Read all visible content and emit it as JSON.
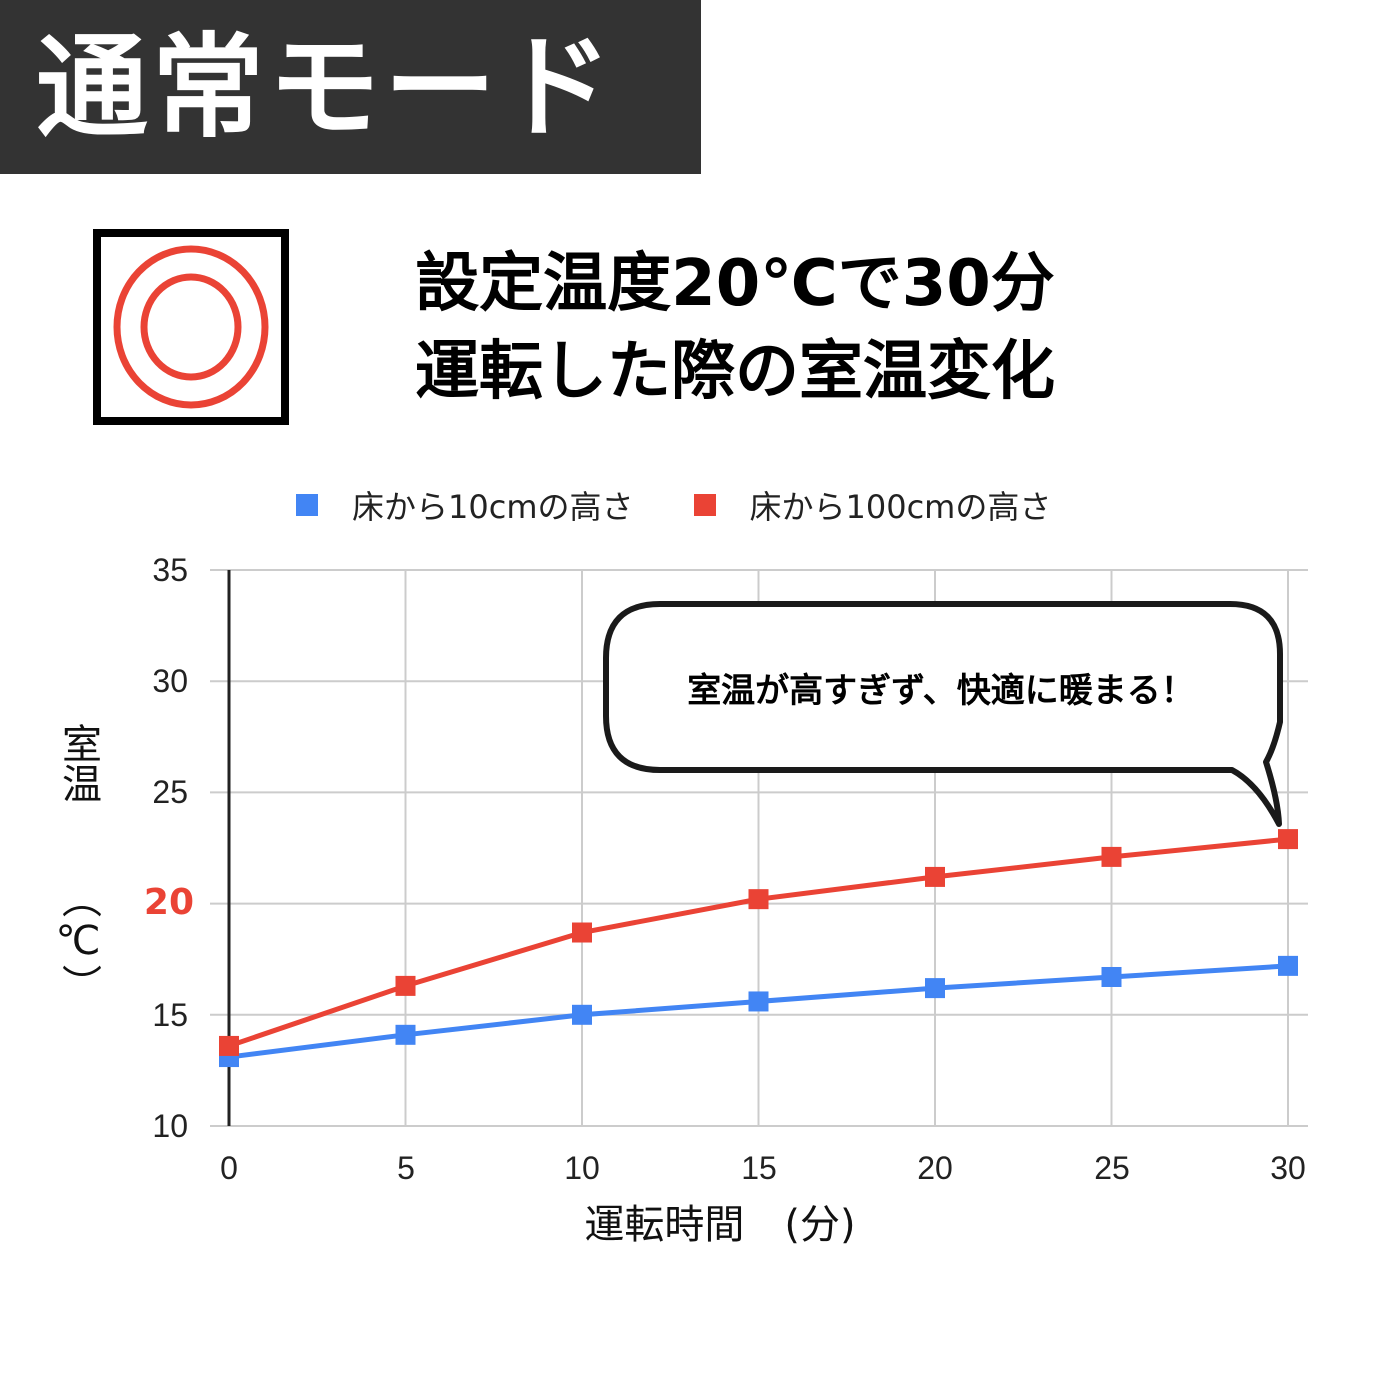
{
  "header": {
    "title": "通常モード",
    "background": "#333333",
    "text_color": "#ffffff"
  },
  "rating_icon": {
    "name": "double-circle-icon",
    "meaning": "◎",
    "color": "#ea4335"
  },
  "subtitle": {
    "line1": "設定温度20℃で30分",
    "line2": "運転した際の室温変化"
  },
  "callout": {
    "text": "室温が高すぎず、快適に暖まる！"
  },
  "legend": [
    {
      "label": "床から10cmの高さ",
      "color": "#4285f4"
    },
    {
      "label": "床から100cmの高さ",
      "color": "#ea4335"
    }
  ],
  "axes": {
    "y_label_main": "室温",
    "y_label_unit": "（℃）",
    "x_label": "運転時間　(分)",
    "y_ticks": [
      "35",
      "30",
      "25",
      "20",
      "15",
      "10"
    ],
    "x_ticks": [
      "0",
      "5",
      "10",
      "15",
      "20",
      "25",
      "30"
    ],
    "highlight_tick": "20",
    "highlight_color": "#ea4335"
  },
  "chart_data": {
    "type": "line",
    "title": "設定温度20℃で30分運転した際の室温変化",
    "xlabel": "運転時間 (分)",
    "ylabel": "室温 (℃)",
    "x": [
      0,
      5,
      10,
      15,
      20,
      25,
      30
    ],
    "series": [
      {
        "name": "床から10cmの高さ",
        "color": "#4285f4",
        "marker": "square",
        "values": [
          13.1,
          14.1,
          15.0,
          15.6,
          16.2,
          16.7,
          17.2
        ]
      },
      {
        "name": "床から100cmの高さ",
        "color": "#ea4335",
        "marker": "square",
        "values": [
          13.6,
          16.3,
          18.7,
          20.2,
          21.2,
          22.1,
          22.9
        ]
      }
    ],
    "xlim": [
      0,
      30
    ],
    "ylim": [
      10,
      35
    ],
    "y_ticks": [
      10,
      15,
      20,
      25,
      30,
      35
    ],
    "x_ticks": [
      0,
      5,
      10,
      15,
      20,
      25,
      30
    ],
    "grid": true,
    "legend_position": "top",
    "annotations": [
      {
        "text": "室温が高すぎず、快適に暖まる！",
        "type": "speech-bubble",
        "points_to": {
          "series": "床から100cmの高さ",
          "x": 30
        }
      },
      {
        "text": "20",
        "type": "highlighted-y-tick",
        "color": "#ea4335"
      }
    ]
  }
}
